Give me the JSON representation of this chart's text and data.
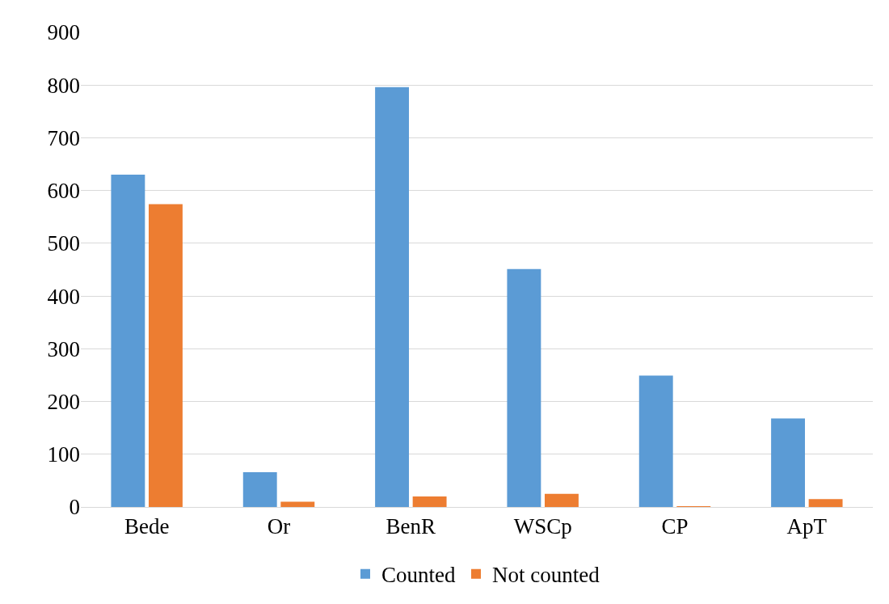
{
  "chart_data": {
    "type": "bar",
    "categories": [
      "Bede",
      "Or",
      "BenR",
      "WSCp",
      "CP",
      "ApT"
    ],
    "series": [
      {
        "name": "Counted",
        "color": "#5b9bd5",
        "values": [
          630,
          66,
          796,
          451,
          249,
          168
        ]
      },
      {
        "name": "Not counted",
        "color": "#ed7d31",
        "values": [
          574,
          10,
          20,
          25,
          1,
          15
        ]
      }
    ],
    "ylim": [
      0,
      900
    ],
    "yticks": [
      0,
      100,
      200,
      300,
      400,
      500,
      600,
      700,
      800,
      900
    ],
    "grid": "y",
    "legend": "bottom"
  }
}
